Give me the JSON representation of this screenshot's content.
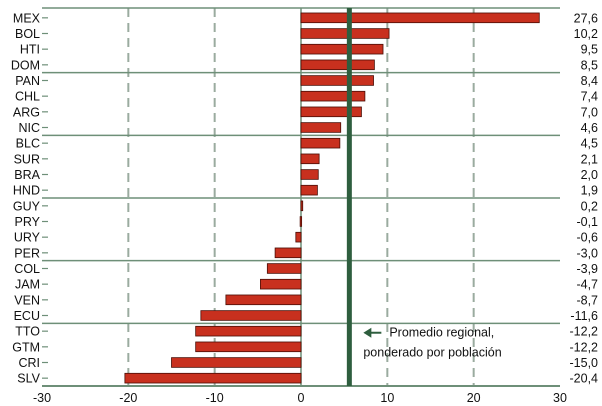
{
  "chart_data": {
    "type": "bar",
    "orientation": "horizontal",
    "categories": [
      "MEX",
      "BOL",
      "HTI",
      "DOM",
      "PAN",
      "CHL",
      "ARG",
      "NIC",
      "BLC",
      "SUR",
      "BRA",
      "HND",
      "GUY",
      "PRY",
      "URY",
      "PER",
      "COL",
      "JAM",
      "VEN",
      "ECU",
      "TTO",
      "GTM",
      "CRI",
      "SLV"
    ],
    "values": [
      27.6,
      10.2,
      9.5,
      8.5,
      8.4,
      7.4,
      7.0,
      4.6,
      4.5,
      2.1,
      2.0,
      1.9,
      0.2,
      -0.1,
      -0.6,
      -3.0,
      -3.9,
      -4.7,
      -8.7,
      -11.6,
      -12.2,
      -12.2,
      -15.0,
      -20.4
    ],
    "value_labels": [
      "27,6",
      "10,2",
      "9,5",
      "8,5",
      "8,4",
      "7,4",
      "7,0",
      "4,6",
      "4,5",
      "2,1",
      "2,0",
      "1,9",
      "0,2",
      "-0,1",
      "-0,6",
      "-3,0",
      "-3,9",
      "-4,7",
      "-8,7",
      "-11,6",
      "-12,2",
      "-12,2",
      "-15,0",
      "-20,4"
    ],
    "xlim": [
      -30,
      30
    ],
    "xticks": [
      -30,
      -20,
      -10,
      0,
      10,
      20,
      30
    ],
    "xtick_labels": [
      "-30",
      "-20",
      "-10",
      "0",
      "10",
      "20",
      "30"
    ],
    "reference_line": {
      "value": 5.6,
      "label_line1": "Promedio regional,",
      "label_line2": "ponderado por población"
    },
    "group_separators_after_index": [
      3,
      7,
      11,
      15,
      19
    ],
    "grid": "vertical-dashed",
    "colors": {
      "bar_fill": "#c8301e",
      "bar_stroke": "#4a0d05",
      "grid": "#9aab9f",
      "reference_line": "#2e5e3e",
      "axis": "#6e8f78",
      "text": "#111111"
    }
  }
}
